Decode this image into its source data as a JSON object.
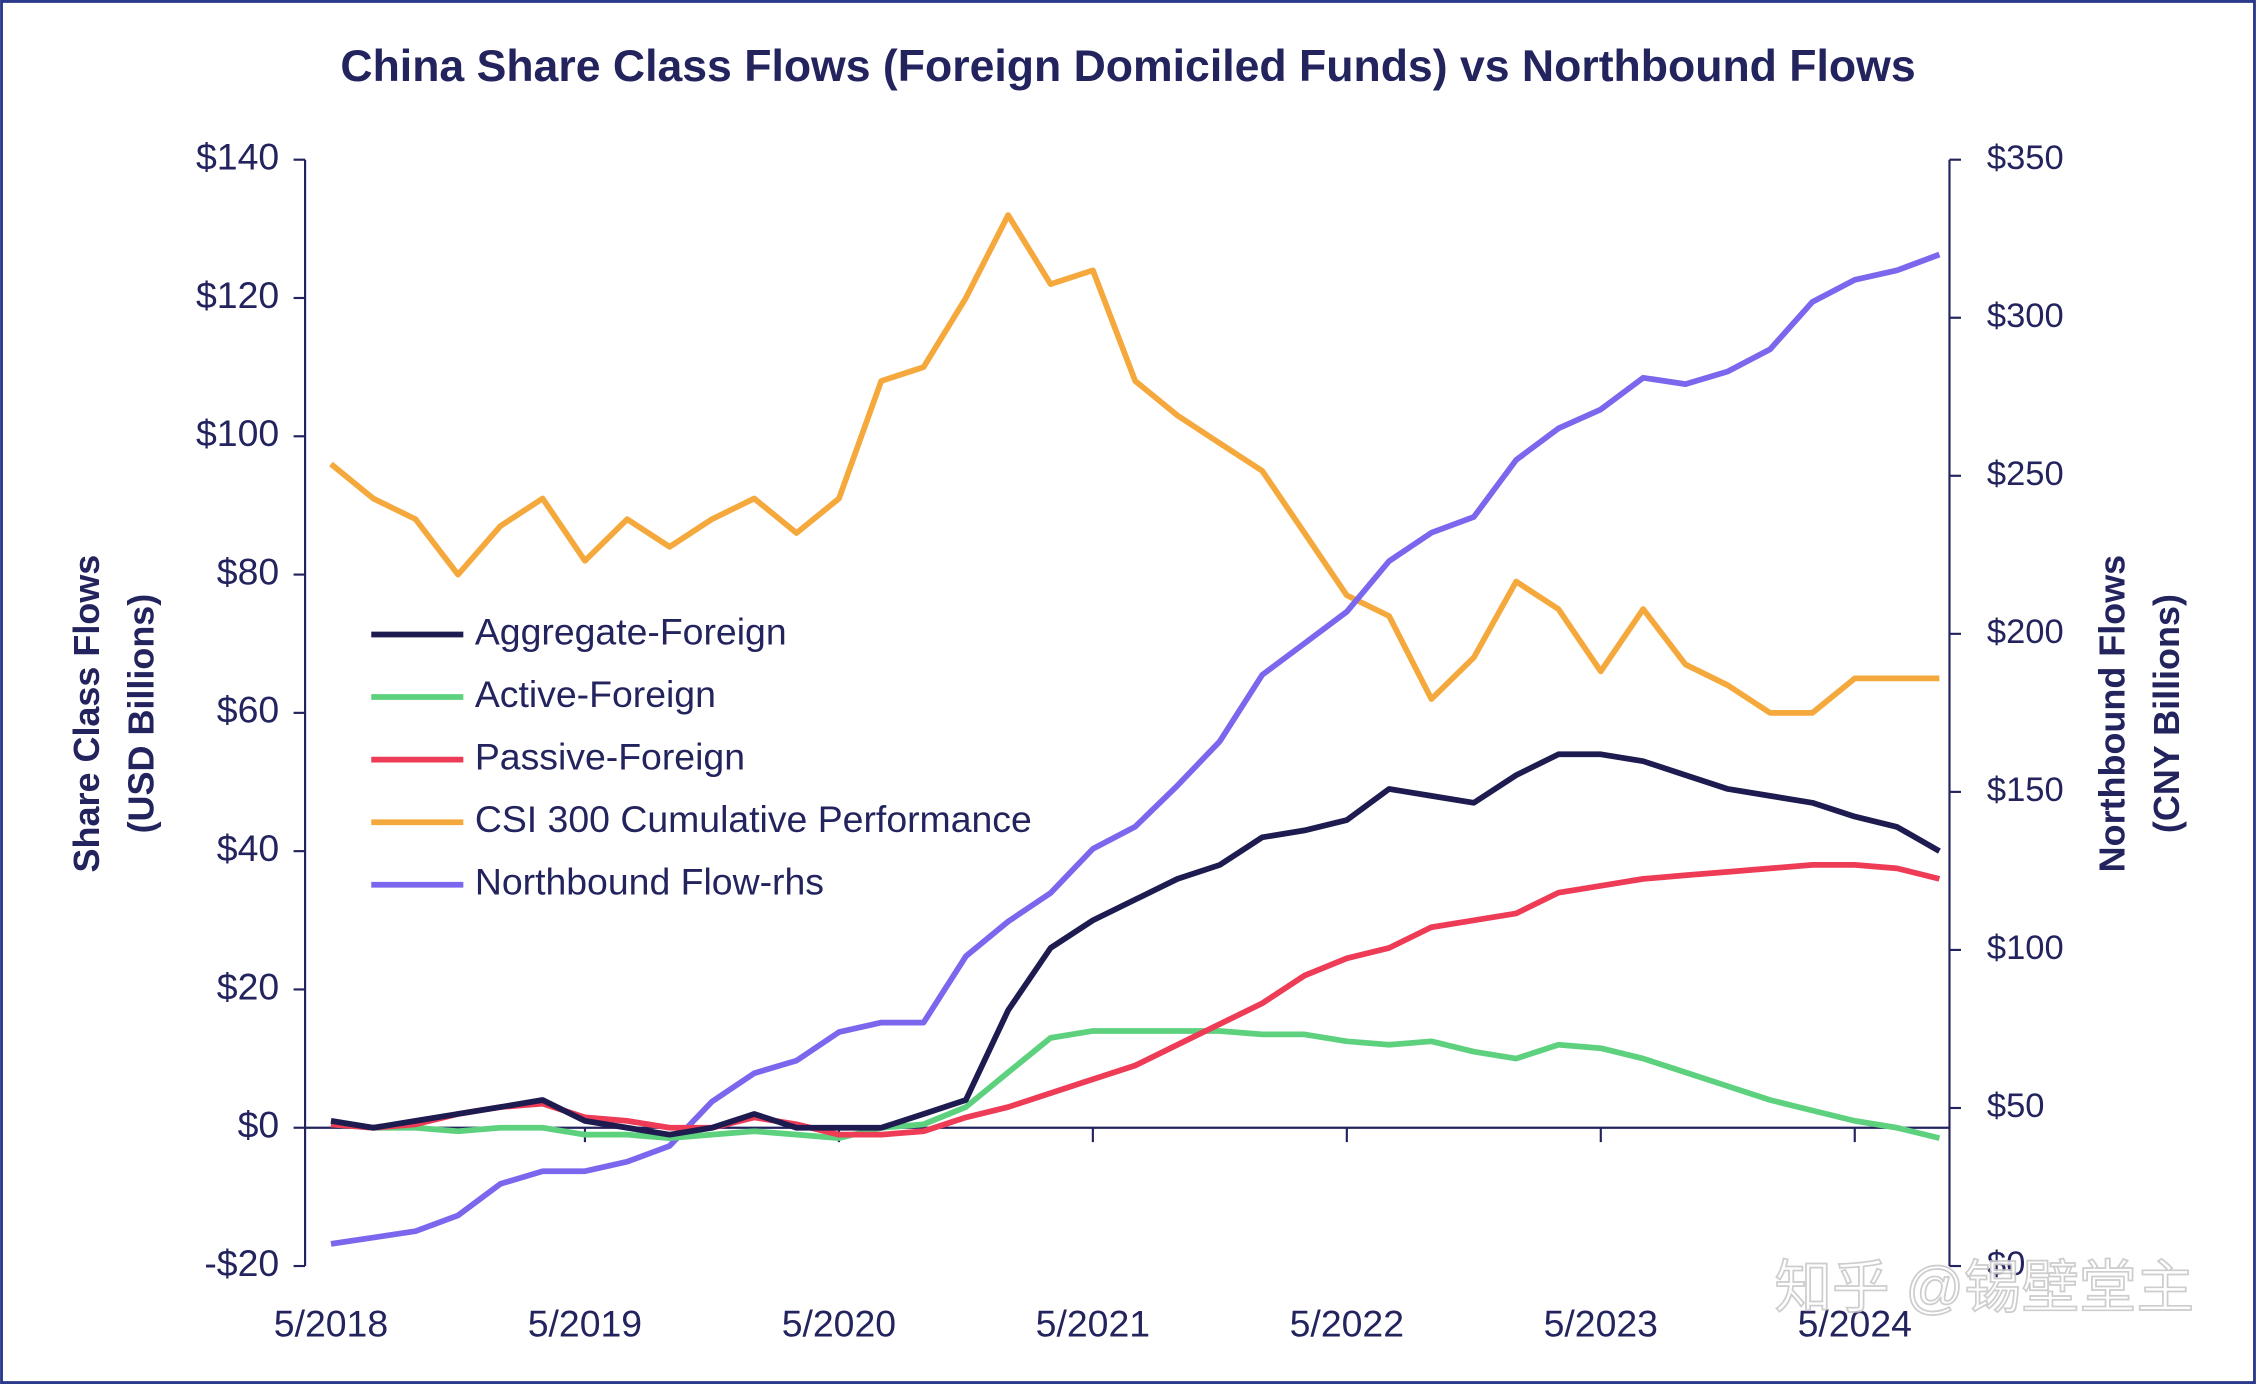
{
  "chart_data": {
    "type": "line",
    "title": "China Share Class Flows (Foreign Domiciled Funds) vs Northbound Flows",
    "ylabel": [
      "Share Class Flows",
      "(USD Billions)"
    ],
    "y2label": [
      "Northbound Flows",
      "(CNY Billions)"
    ],
    "watermark": "知乎 @锡壁堂主",
    "categories": [
      "5/2018",
      null,
      null,
      null,
      null,
      null,
      "5/2019",
      null,
      null,
      null,
      null,
      null,
      "5/2020",
      null,
      null,
      null,
      null,
      null,
      "5/2021",
      null,
      null,
      null,
      null,
      null,
      "5/2022",
      null,
      null,
      null,
      null,
      null,
      "5/2023",
      null,
      null,
      null,
      null,
      null,
      "5/2024",
      null,
      null
    ],
    "ylim": [
      -20,
      140
    ],
    "yticks": [
      {
        "value": -20,
        "label": "-$20"
      },
      {
        "value": 0,
        "label": "$0"
      },
      {
        "value": 20,
        "label": "$20"
      },
      {
        "value": 40,
        "label": "$40"
      },
      {
        "value": 60,
        "label": "$60"
      },
      {
        "value": 80,
        "label": "$80"
      },
      {
        "value": 100,
        "label": "$100"
      },
      {
        "value": 120,
        "label": "$120"
      },
      {
        "value": 140,
        "label": "$140"
      }
    ],
    "y2lim": [
      0,
      350
    ],
    "y2ticks": [
      {
        "value": 0,
        "label": "$0"
      },
      {
        "value": 50,
        "label": "$50"
      },
      {
        "value": 100,
        "label": "$100"
      },
      {
        "value": 150,
        "label": "$150"
      },
      {
        "value": 200,
        "label": "$200"
      },
      {
        "value": 250,
        "label": "$250"
      },
      {
        "value": 300,
        "label": "$300"
      },
      {
        "value": 350,
        "label": "$350"
      }
    ],
    "grid": false,
    "legend": "left",
    "series": [
      {
        "name": "Aggregate-Foreign",
        "color": "#1d1b4f",
        "values": [
          1,
          0,
          1,
          2,
          3,
          4,
          1,
          0,
          -1,
          0,
          2,
          0,
          0,
          0,
          2,
          4,
          17,
          26,
          30,
          33,
          36,
          38,
          42,
          43,
          44.5,
          49,
          48,
          47,
          51,
          54,
          54,
          53,
          51,
          49,
          48,
          47,
          45,
          43.5,
          40
        ]
      },
      {
        "name": "Active-Foreign",
        "color": "#5dd17e",
        "values": [
          0.5,
          0,
          0,
          -0.5,
          0,
          0,
          -1,
          -1,
          -1.5,
          -1,
          -0.5,
          -1,
          -1.5,
          0,
          0.5,
          3,
          8,
          13,
          14,
          14,
          14,
          14,
          13.5,
          13.5,
          12.5,
          12,
          12.5,
          11,
          10,
          12,
          11.5,
          10,
          8,
          6,
          4,
          2.5,
          1,
          0,
          -1.5
        ]
      },
      {
        "name": "Passive-Foreign",
        "color": "#ee3b56",
        "values": [
          0.5,
          0,
          0.5,
          2,
          3,
          3.5,
          1.5,
          1,
          0,
          0,
          1.5,
          0.5,
          -1,
          -1,
          -0.5,
          1.5,
          3,
          5,
          7,
          9,
          12,
          15,
          18,
          22,
          24.5,
          26,
          29,
          30,
          31,
          34,
          35,
          36,
          36.5,
          37,
          37.5,
          38,
          38,
          37.5,
          36
        ]
      },
      {
        "name": "CSI 300 Cumulative Performance",
        "color": "#f5a93c",
        "values": [
          96,
          91,
          88,
          80,
          87,
          91,
          82,
          88,
          84,
          88,
          91,
          86,
          91,
          108,
          110,
          120,
          132,
          122,
          124,
          108,
          103,
          99,
          95,
          86,
          77,
          74,
          62,
          68,
          79,
          75,
          66,
          75,
          67,
          64,
          60,
          60,
          65,
          65,
          65
        ]
      },
      {
        "name": "Northbound Flow-rhs",
        "color": "#7b67ee",
        "axis": "y2",
        "values": [
          7,
          9,
          11,
          16,
          26,
          30,
          30,
          33,
          38,
          52,
          61,
          65,
          74,
          77,
          77,
          98,
          109,
          118,
          132,
          139,
          152,
          166,
          187,
          197,
          207,
          223,
          232,
          237,
          255,
          265,
          271,
          281,
          279,
          283,
          290,
          305,
          312,
          315,
          320
        ]
      }
    ]
  }
}
